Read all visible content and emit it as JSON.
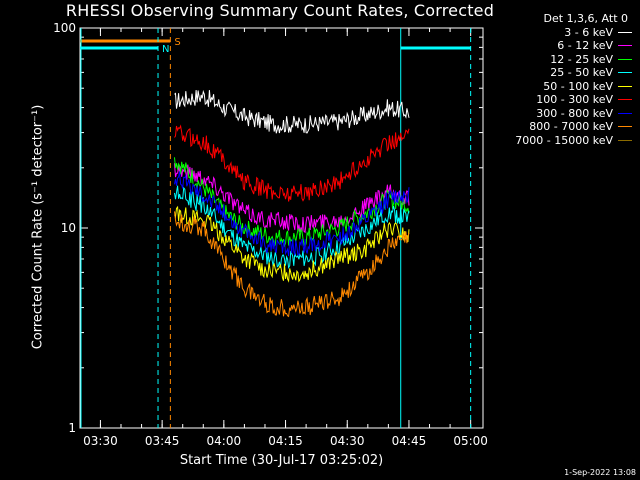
{
  "chart_data": {
    "type": "line",
    "title": "RHESSI Observing Summary Count Rates, Corrected",
    "xlabel": "Start Time (30-Jul-17 03:25:02)",
    "ylabel": "Corrected Count Rate (s⁻¹ detector⁻¹)",
    "y_scale": "log",
    "ylim": [
      1,
      100
    ],
    "xlim_minutes_after_0325": [
      0,
      40
    ],
    "x_ticks": [
      {
        "label": "03:30",
        "minutes": 4.97
      },
      {
        "label": "03:45",
        "minutes": 19.97
      },
      {
        "label": "04:00",
        "minutes": 34.97
      },
      {
        "label": "04:15",
        "minutes": 49.97
      },
      {
        "label": "04:30",
        "minutes": 64.97
      },
      {
        "label": "04:45",
        "minutes": 79.97
      },
      {
        "label": "05:00",
        "minutes": 94.97
      }
    ],
    "y_ticks": [
      {
        "label": "1",
        "value": 1
      },
      {
        "label": "10",
        "value": 10
      },
      {
        "label": "100",
        "value": 100
      }
    ],
    "xlim": [
      "03:25:02",
      "05:03:00"
    ],
    "legend_header": "Det 1,3,6, Att 0",
    "legend_placement": "top-right, outside plot",
    "series": [
      {
        "name": "3 - 6 keV",
        "color": "#ffffff",
        "points": [
          [
            "03:48",
            43
          ],
          [
            "03:55",
            46
          ],
          [
            "04:00",
            40
          ],
          [
            "04:05",
            36
          ],
          [
            "04:12",
            33
          ],
          [
            "04:20",
            33
          ],
          [
            "04:28",
            34
          ],
          [
            "04:35",
            37
          ],
          [
            "04:40",
            40
          ],
          [
            "04:45",
            38
          ]
        ]
      },
      {
        "name": "6 - 12 keV",
        "color": "#ff00ff",
        "points": [
          [
            "03:48",
            20
          ],
          [
            "03:55",
            18
          ],
          [
            "04:00",
            15
          ],
          [
            "04:05",
            12
          ],
          [
            "04:10",
            11
          ],
          [
            "04:20",
            10.5
          ],
          [
            "04:28",
            11
          ],
          [
            "04:35",
            13
          ],
          [
            "04:40",
            15
          ],
          [
            "04:45",
            14
          ]
        ]
      },
      {
        "name": "12 - 25 keV",
        "color": "#00ff00",
        "points": [
          [
            "03:48",
            22
          ],
          [
            "03:55",
            16
          ],
          [
            "04:00",
            12
          ],
          [
            "04:05",
            10
          ],
          [
            "04:12",
            9
          ],
          [
            "04:20",
            9
          ],
          [
            "04:28",
            10
          ],
          [
            "04:35",
            12
          ],
          [
            "04:40",
            14
          ],
          [
            "04:45",
            13
          ]
        ]
      },
      {
        "name": "25 - 50 keV",
        "color": "#00ffff",
        "points": [
          [
            "03:48",
            15
          ],
          [
            "03:55",
            13
          ],
          [
            "04:00",
            10
          ],
          [
            "04:05",
            8
          ],
          [
            "04:12",
            7
          ],
          [
            "04:20",
            7
          ],
          [
            "04:28",
            8
          ],
          [
            "04:35",
            10
          ],
          [
            "04:40",
            12
          ],
          [
            "04:45",
            11
          ]
        ]
      },
      {
        "name": "50 - 100 keV",
        "color": "#ffff00",
        "points": [
          [
            "03:48",
            12
          ],
          [
            "03:55",
            11
          ],
          [
            "04:00",
            9
          ],
          [
            "04:05",
            7
          ],
          [
            "04:12",
            6
          ],
          [
            "04:20",
            6
          ],
          [
            "04:28",
            7
          ],
          [
            "04:35",
            8
          ],
          [
            "04:40",
            10
          ],
          [
            "04:45",
            9
          ]
        ]
      },
      {
        "name": "100 - 300 keV",
        "color": "#ff0000",
        "points": [
          [
            "03:48",
            30
          ],
          [
            "03:55",
            27
          ],
          [
            "04:00",
            22
          ],
          [
            "04:05",
            17
          ],
          [
            "04:12",
            15
          ],
          [
            "04:20",
            15
          ],
          [
            "04:28",
            17
          ],
          [
            "04:35",
            22
          ],
          [
            "04:40",
            27
          ],
          [
            "04:45",
            29
          ]
        ]
      },
      {
        "name": "300 - 800 keV",
        "color": "#0000ff",
        "points": [
          [
            "03:48",
            18
          ],
          [
            "03:55",
            15
          ],
          [
            "04:00",
            12
          ],
          [
            "04:05",
            9.5
          ],
          [
            "04:12",
            8
          ],
          [
            "04:20",
            8
          ],
          [
            "04:28",
            9
          ],
          [
            "04:35",
            11
          ],
          [
            "04:40",
            14
          ],
          [
            "04:45",
            15
          ]
        ]
      },
      {
        "name": "800 - 7000 keV",
        "color": "#ff8800",
        "points": [
          [
            "03:48",
            11
          ],
          [
            "03:55",
            10
          ],
          [
            "04:00",
            7
          ],
          [
            "04:05",
            5
          ],
          [
            "04:12",
            4
          ],
          [
            "04:20",
            4
          ],
          [
            "04:28",
            4.5
          ],
          [
            "04:35",
            6
          ],
          [
            "04:40",
            8
          ],
          [
            "04:45",
            9
          ]
        ]
      },
      {
        "name": "7000 - 15000 keV",
        "color": "#8b6b00",
        "points": []
      }
    ],
    "markers": [
      {
        "label": "S",
        "color": "#ff8800",
        "style": "bar+dashed",
        "start": "03:25",
        "end": "03:47"
      },
      {
        "label": "N",
        "color": "#00ffff",
        "style": "bar+dashed",
        "start": "03:25",
        "end": "03:44"
      },
      {
        "label": "",
        "color": "#00ffff",
        "style": "bar+dashed",
        "start": "04:43",
        "end": "05:00"
      }
    ]
  },
  "footer": {
    "timestamp": "1-Sep-2022 13:08"
  }
}
